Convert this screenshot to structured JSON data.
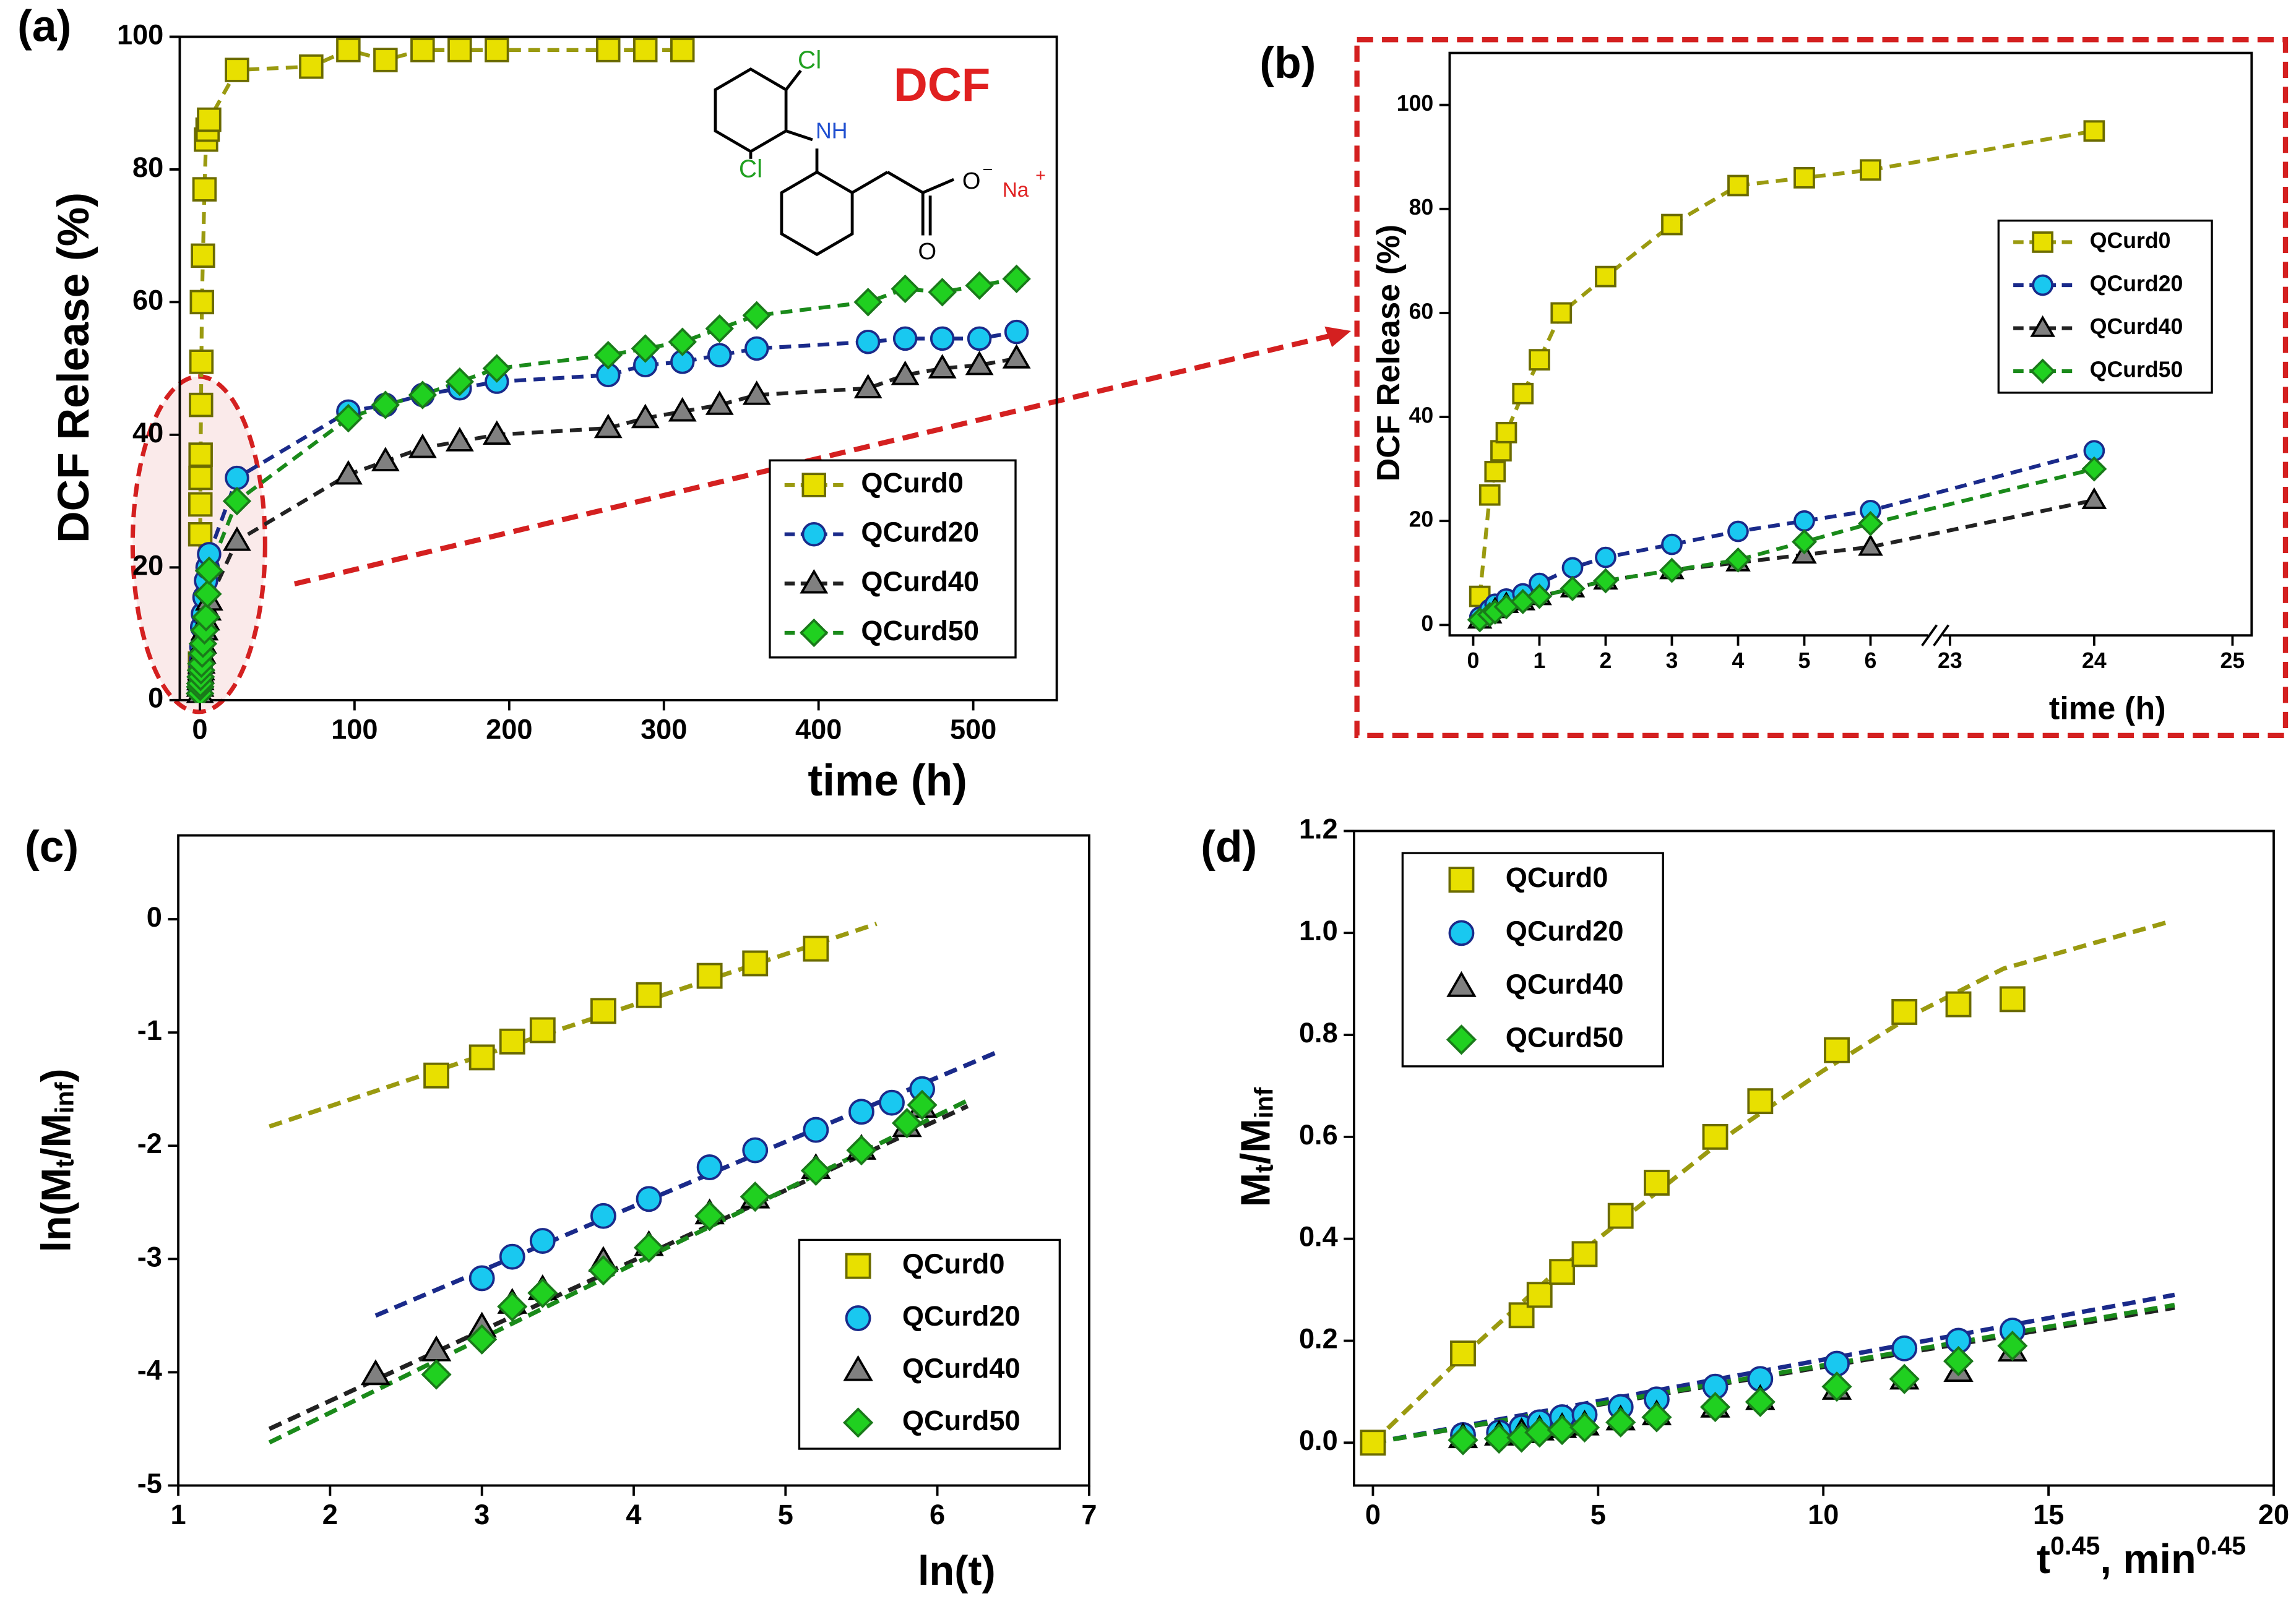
{
  "chart_data": [
    {
      "type": "line",
      "title": "(a)",
      "annotation": "DCF",
      "xlabel": "time (h)",
      "ylabel": "DCF Release (%)",
      "structure_labels": [
        "Cl",
        "NH",
        "Cl",
        "O",
        "−",
        "Na",
        "+",
        "O"
      ],
      "xlim": [
        -13,
        554
      ],
      "ylim": [
        0,
        100
      ],
      "xticks": [
        0,
        100,
        200,
        300,
        400,
        500
      ],
      "yticks": [
        0,
        20,
        40,
        60,
        80,
        100
      ],
      "legend": "lower right",
      "connect": true,
      "series": [
        {
          "name": "QCurd0",
          "marker": "square",
          "color": "#e8e000",
          "edge": "#6b6b00",
          "line_color": "#9a9a10",
          "x": [
            0.1,
            0.25,
            0.33,
            0.42,
            0.5,
            0.75,
            1,
            1.33,
            2,
            3,
            4,
            5,
            6,
            24,
            72,
            96,
            120,
            144,
            168,
            192,
            264,
            288,
            312
          ],
          "values": [
            5.5,
            25,
            29.5,
            33.5,
            37,
            44.5,
            51,
            60,
            67,
            77,
            84.5,
            86,
            87.5,
            95,
            95.5,
            98,
            96.5,
            98,
            98,
            98,
            98,
            98,
            98
          ]
        },
        {
          "name": "QCurd20",
          "marker": "circle",
          "color": "#19c8f0",
          "edge": "#1a2a8a",
          "line_color": "#1a2a8a",
          "x": [
            0.1,
            0.25,
            0.33,
            0.5,
            0.75,
            1,
            1.5,
            2,
            3,
            4,
            5,
            6,
            24,
            96,
            120,
            144,
            168,
            192,
            264,
            288,
            312,
            336,
            360,
            432,
            456,
            480,
            504,
            528
          ],
          "values": [
            1.5,
            3,
            4,
            5,
            6,
            8,
            11,
            13,
            15.5,
            18,
            20,
            22,
            33.5,
            43.5,
            44.5,
            46,
            47,
            48,
            49,
            50.5,
            51,
            52,
            53,
            54,
            54.5,
            54.5,
            54.5,
            55.5
          ]
        },
        {
          "name": "QCurd40",
          "marker": "triangle",
          "color": "#808080",
          "edge": "#000000",
          "line_color": "#222222",
          "x": [
            0.1,
            0.25,
            0.33,
            0.5,
            0.75,
            1,
            1.5,
            2,
            3,
            4,
            5,
            6,
            24,
            96,
            120,
            144,
            168,
            192,
            264,
            288,
            312,
            336,
            360,
            432,
            456,
            480,
            504,
            528
          ],
          "values": [
            1,
            2,
            3,
            4,
            4.5,
            5.5,
            7,
            8.5,
            10.5,
            12,
            13.5,
            15,
            24,
            34,
            36,
            38,
            39,
            40,
            41,
            42.5,
            43.5,
            44.5,
            46,
            47,
            49,
            50,
            50.5,
            51.5
          ]
        },
        {
          "name": "QCurd50",
          "marker": "diamond",
          "color": "#20d020",
          "edge": "#1a7a1a",
          "line_color": "#1a8a1a",
          "x": [
            0.1,
            0.25,
            0.33,
            0.5,
            0.75,
            1,
            1.5,
            2,
            3,
            4,
            5,
            6,
            24,
            96,
            120,
            144,
            168,
            192,
            264,
            288,
            312,
            336,
            360,
            432,
            456,
            480,
            504,
            528
          ],
          "values": [
            1,
            2,
            2.5,
            3.5,
            4.5,
            5.5,
            7,
            8.5,
            10.5,
            12.5,
            16,
            19.5,
            30,
            42.5,
            44.5,
            46,
            48,
            50,
            52,
            53,
            54,
            56,
            58,
            60,
            62,
            61.5,
            62.5,
            63.5
          ]
        }
      ]
    },
    {
      "type": "line",
      "title": "(b)",
      "xlabel": "time (h)",
      "ylabel": "DCF Release (%)",
      "x_axis_break": true,
      "xlim": [
        -0.35,
        25.1
      ],
      "ylim": [
        -2,
        110
      ],
      "xticks": [
        0,
        1,
        2,
        3,
        4,
        5,
        6,
        23,
        24,
        25
      ],
      "yticks": [
        0,
        20,
        40,
        60,
        80,
        100
      ],
      "legend": "upper right",
      "connect": true,
      "series": [
        {
          "name": "QCurd0",
          "marker": "square",
          "color": "#e8e000",
          "edge": "#6b6b00",
          "line_color": "#9a9a10",
          "x": [
            0.1,
            0.25,
            0.33,
            0.42,
            0.5,
            0.75,
            1,
            1.33,
            2,
            3,
            4,
            5,
            6,
            24
          ],
          "values": [
            5.5,
            25,
            29.5,
            33.5,
            37,
            44.5,
            51,
            60,
            67,
            77,
            84.5,
            86,
            87.5,
            95
          ]
        },
        {
          "name": "QCurd20",
          "marker": "circle",
          "color": "#19c8f0",
          "edge": "#1a2a8a",
          "line_color": "#1a2a8a",
          "x": [
            0.1,
            0.25,
            0.33,
            0.5,
            0.75,
            1,
            1.5,
            2,
            3,
            4,
            5,
            6,
            24
          ],
          "values": [
            1.5,
            3,
            4,
            5,
            6,
            8,
            11,
            13,
            15.5,
            18,
            20,
            22,
            33.5
          ]
        },
        {
          "name": "QCurd40",
          "marker": "triangle",
          "color": "#808080",
          "edge": "#000000",
          "line_color": "#222222",
          "x": [
            0.1,
            0.25,
            0.33,
            0.5,
            0.75,
            1,
            1.5,
            2,
            3,
            4,
            5,
            6,
            24
          ],
          "values": [
            1,
            2,
            3,
            4,
            4.5,
            5.5,
            7,
            8.5,
            10.5,
            12,
            13.5,
            15,
            24
          ]
        },
        {
          "name": "QCurd50",
          "marker": "diamond",
          "color": "#20d020",
          "edge": "#1a7a1a",
          "line_color": "#1a8a1a",
          "x": [
            0.1,
            0.25,
            0.33,
            0.5,
            0.75,
            1,
            1.5,
            2,
            3,
            4,
            5,
            6,
            24
          ],
          "values": [
            1,
            2,
            2.5,
            3.5,
            4.5,
            5.5,
            7,
            8.5,
            10.5,
            12.5,
            16,
            19.5,
            30
          ]
        }
      ]
    },
    {
      "type": "scatter",
      "title": "(c)",
      "xlabel": "ln(t)",
      "ylabel": [
        {
          "text": "ln(M"
        },
        {
          "text": "t",
          "sub": true
        },
        {
          "text": "/M"
        },
        {
          "text": "inf",
          "sub": true
        },
        {
          "text": ")"
        }
      ],
      "xlim": [
        1,
        7
      ],
      "ylim": [
        -5,
        0.74
      ],
      "xticks": [
        1,
        2,
        3,
        4,
        5,
        6,
        7
      ],
      "yticks": [
        -5,
        -4,
        -3,
        -2,
        -1,
        0
      ],
      "legend": "lower right",
      "series": [
        {
          "name": "QCurd0",
          "marker": "square",
          "color": "#e8e000",
          "edge": "#6b6b00",
          "line_color": "#9a9a10",
          "x": [
            2.7,
            3,
            3.2,
            3.4,
            3.8,
            4.1,
            4.5,
            4.8,
            5.2
          ],
          "values": [
            -1.38,
            -1.22,
            -1.08,
            -0.98,
            -0.81,
            -0.67,
            -0.5,
            -0.39,
            -0.26
          ],
          "fit": {
            "x": [
              1.6,
              5.6
            ],
            "values": [
              -1.83,
              -0.04
            ]
          }
        },
        {
          "name": "QCurd20",
          "marker": "circle",
          "color": "#19c8f0",
          "edge": "#1a2a8a",
          "line_color": "#1a2a8a",
          "x": [
            3,
            3.2,
            3.4,
            3.8,
            4.1,
            4.5,
            4.8,
            5.2,
            5.5,
            5.7,
            5.9
          ],
          "values": [
            -3.17,
            -2.98,
            -2.84,
            -2.62,
            -2.47,
            -2.19,
            -2.04,
            -1.86,
            -1.7,
            -1.62,
            -1.5
          ],
          "fit": {
            "x": [
              2.3,
              6.4
            ],
            "values": [
              -3.5,
              -1.17
            ]
          }
        },
        {
          "name": "QCurd40",
          "marker": "triangle",
          "color": "#808080",
          "edge": "#000000",
          "line_color": "#222222",
          "x": [
            2.3,
            2.7,
            3,
            3.2,
            3.4,
            3.8,
            4.1,
            4.5,
            4.8,
            5.2,
            5.5,
            5.8,
            5.9
          ],
          "values": [
            -4.02,
            -3.81,
            -3.6,
            -3.39,
            -3.27,
            -3.02,
            -2.88,
            -2.6,
            -2.46,
            -2.2,
            -2.03,
            -1.83,
            -1.66
          ],
          "fit": {
            "x": [
              1.6,
              6.2
            ],
            "values": [
              -4.5,
              -1.65
            ]
          }
        },
        {
          "name": "QCurd50",
          "marker": "diamond",
          "color": "#20d020",
          "edge": "#1a7a1a",
          "line_color": "#1a8a1a",
          "x": [
            2.7,
            3,
            3.2,
            3.4,
            3.8,
            4.1,
            4.5,
            4.8,
            5.2,
            5.5,
            5.8,
            5.9
          ],
          "values": [
            -4.02,
            -3.71,
            -3.42,
            -3.3,
            -3.1,
            -2.9,
            -2.62,
            -2.45,
            -2.22,
            -2.04,
            -1.8,
            -1.64
          ],
          "fit": {
            "x": [
              1.6,
              6.2
            ],
            "values": [
              -4.62,
              -1.6
            ]
          }
        }
      ]
    },
    {
      "type": "scatter",
      "title": "(d)",
      "xlabel": [
        {
          "text": "t"
        },
        {
          "text": "0.45",
          "sup": true
        },
        {
          "text": ", min"
        },
        {
          "text": "0.45",
          "sup": true
        }
      ],
      "ylabel": [
        {
          "text": "M"
        },
        {
          "text": "t",
          "sub": true
        },
        {
          "text": "/M"
        },
        {
          "text": "inf",
          "sub": true
        }
      ],
      "xlim": [
        -0.42,
        20
      ],
      "ylim": [
        -0.084,
        1.2
      ],
      "xticks": [
        0,
        5,
        10,
        15,
        20
      ],
      "yticks": [
        {
          "value": 0,
          "label": "0.0"
        },
        0.2,
        0.4,
        0.6,
        0.8,
        {
          "value": 1,
          "label": "1.0"
        },
        1.2
      ],
      "legend": "upper left",
      "series": [
        {
          "name": "QCurd0",
          "marker": "square",
          "color": "#e8e000",
          "edge": "#6b6b00",
          "line_color": "#9a9a10",
          "x": [
            0,
            2,
            3.3,
            3.7,
            4.2,
            4.7,
            5.5,
            6.3,
            7.6,
            8.6,
            10.3,
            11.8,
            13,
            14.2
          ],
          "values": [
            0,
            0.175,
            0.25,
            0.29,
            0.335,
            0.37,
            0.445,
            0.51,
            0.6,
            0.67,
            0.77,
            0.845,
            0.86,
            0.87
          ],
          "fit": {
            "x": [
              0,
              2,
              4,
              6,
              8,
              10,
              12,
              14,
              16,
              17.6
            ],
            "values": [
              0,
              0.17,
              0.33,
              0.47,
              0.61,
              0.73,
              0.84,
              0.93,
              0.98,
              1.02
            ]
          }
        },
        {
          "name": "QCurd20",
          "marker": "circle",
          "color": "#19c8f0",
          "edge": "#1a2a8a",
          "line_color": "#1a2a8a",
          "x": [
            2,
            2.8,
            3.3,
            3.7,
            4.2,
            4.7,
            5.5,
            6.3,
            7.6,
            8.6,
            10.3,
            11.8,
            13,
            14.2
          ],
          "values": [
            0.015,
            0.02,
            0.03,
            0.04,
            0.05,
            0.055,
            0.07,
            0.085,
            0.11,
            0.125,
            0.155,
            0.185,
            0.2,
            0.22
          ],
          "fit": {
            "x": [
              0,
              17.8
            ],
            "values": [
              0,
              0.29
            ]
          }
        },
        {
          "name": "QCurd40",
          "marker": "triangle",
          "color": "#808080",
          "edge": "#000000",
          "line_color": "#222222",
          "x": [
            2,
            2.8,
            3.3,
            3.7,
            4.2,
            4.7,
            5.5,
            6.3,
            7.6,
            8.6,
            10.3,
            11.8,
            13,
            14.2
          ],
          "values": [
            0.01,
            0.015,
            0.02,
            0.025,
            0.03,
            0.035,
            0.045,
            0.055,
            0.07,
            0.085,
            0.105,
            0.125,
            0.14,
            0.18
          ],
          "fit": {
            "x": [
              0,
              17.8
            ],
            "values": [
              0,
              0.265
            ]
          }
        },
        {
          "name": "QCurd50",
          "marker": "diamond",
          "color": "#20d020",
          "edge": "#1a7a1a",
          "line_color": "#1a8a1a",
          "x": [
            2,
            2.8,
            3.3,
            3.7,
            4.2,
            4.7,
            5.5,
            6.3,
            7.6,
            8.6,
            10.3,
            11.8,
            13,
            14.2
          ],
          "values": [
            0.005,
            0.008,
            0.01,
            0.02,
            0.025,
            0.03,
            0.04,
            0.05,
            0.07,
            0.08,
            0.11,
            0.125,
            0.16,
            0.19
          ],
          "fit": {
            "x": [
              0,
              17.8
            ],
            "values": [
              0,
              0.27
            ]
          }
        }
      ]
    }
  ]
}
